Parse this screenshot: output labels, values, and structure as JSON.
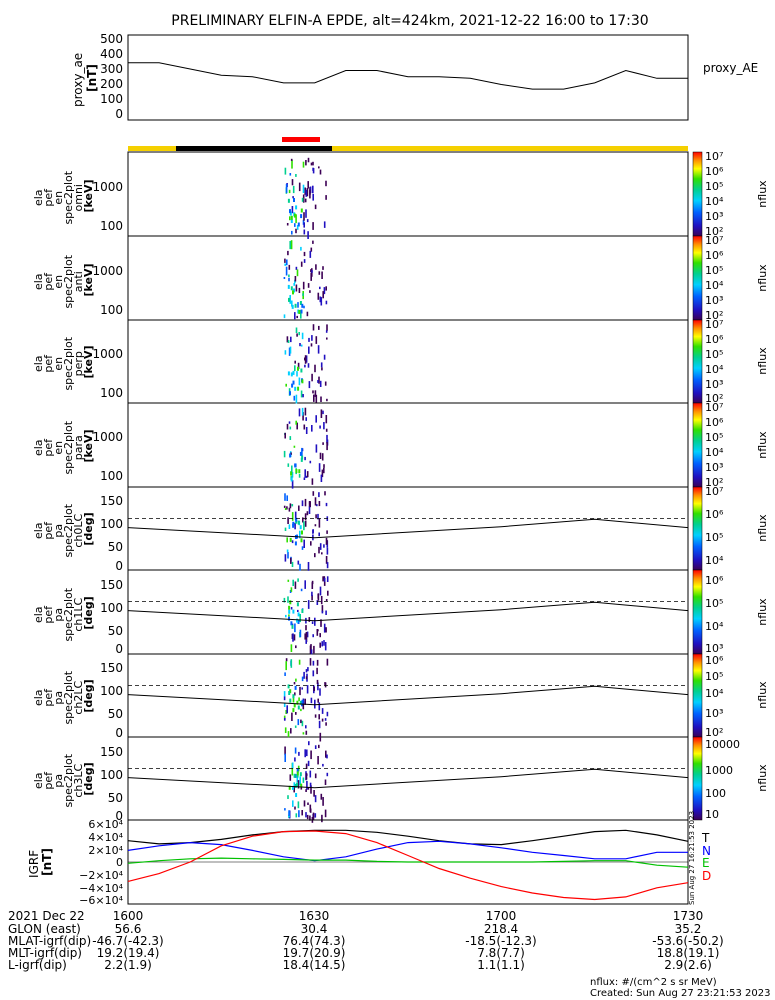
{
  "title": "PRELIMINARY ELFIN-A EPDE, alt=424km, 2021-12-22 16:00 to 17:30",
  "colors": {
    "sunlight_bar": "#f5d000",
    "shadow_bar": "#000000",
    "science_zone_bar": "#ff0000",
    "T": "#000000",
    "N": "#0000ff",
    "E": "#00c000",
    "D": "#ff0000"
  },
  "panels": {
    "proxy_ae": {
      "ylabel_lines": [
        "proxy_ae",
        "[nT]"
      ],
      "yticks": [
        "500",
        "400",
        "300",
        "200",
        "100",
        "0"
      ],
      "legend": "proxy_AE"
    },
    "spec_energy": [
      {
        "ylabel_lines": [
          "ela",
          "pef",
          "en",
          "spec2plot",
          "omni",
          "[keV]"
        ],
        "yticks": [
          "1000",
          "100"
        ]
      },
      {
        "ylabel_lines": [
          "ela",
          "pef",
          "en",
          "spec2plot",
          "anti",
          "[keV]"
        ],
        "yticks": [
          "1000",
          "100"
        ]
      },
      {
        "ylabel_lines": [
          "ela",
          "pef",
          "en",
          "spec2plot",
          "perp",
          "[keV]"
        ],
        "yticks": [
          "1000",
          "100"
        ]
      },
      {
        "ylabel_lines": [
          "ela",
          "pef",
          "en",
          "spec2plot",
          "para",
          "[keV]"
        ],
        "yticks": [
          "1000",
          "100"
        ]
      }
    ],
    "spec_pa": [
      {
        "ylabel_lines": [
          "ela",
          "pef",
          "pa",
          "spec2plot",
          "ch0LC",
          "[deg]"
        ],
        "yticks": [
          "150",
          "100",
          "50",
          "0"
        ]
      },
      {
        "ylabel_lines": [
          "ela",
          "pef",
          "pa",
          "spec2plot",
          "ch1LC",
          "[deg]"
        ],
        "yticks": [
          "150",
          "100",
          "50",
          "0"
        ]
      },
      {
        "ylabel_lines": [
          "ela",
          "pef",
          "pa",
          "spec2plot",
          "ch2LC",
          "[deg]"
        ],
        "yticks": [
          "150",
          "100",
          "50",
          "0"
        ]
      },
      {
        "ylabel_lines": [
          "ela",
          "pef",
          "pa",
          "spec2plot",
          "ch3LC",
          "[deg]"
        ],
        "yticks": [
          "150",
          "100",
          "50",
          "0"
        ]
      }
    ],
    "colorbars": [
      {
        "labels": [
          "10⁷",
          "10⁶",
          "10⁵",
          "10⁴",
          "10³",
          "10²"
        ],
        "unit": "nflux"
      },
      {
        "labels": [
          "10⁷",
          "10⁶",
          "10⁵",
          "10⁴",
          "10³",
          "10²"
        ],
        "unit": "nflux"
      },
      {
        "labels": [
          "10⁷",
          "10⁶",
          "10⁵",
          "10⁴",
          "10³",
          "10²"
        ],
        "unit": "nflux"
      },
      {
        "labels": [
          "10⁷",
          "10⁶",
          "10⁵",
          "10⁴",
          "10³",
          "10²"
        ],
        "unit": "nflux"
      },
      {
        "labels": [
          "10⁷",
          "10⁶",
          "10⁵",
          "10⁴"
        ],
        "unit": "nflux"
      },
      {
        "labels": [
          "10⁶",
          "10⁵",
          "10⁴",
          "10³"
        ],
        "unit": "nflux"
      },
      {
        "labels": [
          "10⁶",
          "10⁵",
          "10⁴",
          "10³",
          "10²"
        ],
        "unit": "nflux"
      },
      {
        "labels": [
          "10000",
          "1000",
          "100",
          "10"
        ],
        "unit": "nflux"
      }
    ],
    "igrf": {
      "ylabel_lines": [
        "IGRF",
        "[nT]"
      ],
      "yticks": [
        "6×10⁴",
        "4×10⁴",
        "2×10⁴",
        "0",
        "−2×10⁴",
        "−4×10⁴",
        "−6×10⁴"
      ],
      "legend": [
        "T",
        "N",
        "E",
        "D"
      ]
    }
  },
  "footer": {
    "rows": [
      [
        "2021 Dec 22",
        "1600",
        "1630",
        "1700",
        "1730"
      ],
      [
        "GLON (east)",
        "56.6",
        "30.4",
        "218.4",
        "35.2"
      ],
      [
        "MLAT-igrf(dip)",
        "-46.7(-42.3)",
        "76.4(74.3)",
        "-18.5(-12.3)",
        "-53.6(-50.2)"
      ],
      [
        "MLT-igrf(dip)",
        "19.2(19.4)",
        "19.7(20.9)",
        "7.8(7.7)",
        "18.8(19.1)"
      ],
      [
        "L-igrf(dip)",
        "2.2(1.9)",
        "18.4(14.5)",
        "1.1(1.1)",
        "2.9(2.6)"
      ]
    ],
    "unit_note": "nflux: #/(cm^2 s sr MeV)",
    "created": "Created: Sun Aug 27 23:21:53 2023",
    "side_stamp": "Sun Aug 27 16:21:53 2023"
  },
  "chart_data": [
    {
      "type": "line",
      "name_key": "proxy_ae",
      "x": [
        1600,
        1605,
        1610,
        1615,
        1620,
        1625,
        1630,
        1635,
        1640,
        1645,
        1650,
        1655,
        1700,
        1705,
        1710,
        1715,
        1720,
        1725,
        1730
      ],
      "series": [
        {
          "name": "proxy_AE",
          "values": [
            370,
            370,
            330,
            290,
            280,
            240,
            240,
            320,
            320,
            280,
            280,
            270,
            230,
            200,
            200,
            240,
            320,
            270,
            270
          ]
        }
      ],
      "ylim": [
        0,
        550
      ]
    },
    {
      "type": "heatmap",
      "name_key": "energy_spectra",
      "xlim": [
        1600,
        1730
      ],
      "ylim_keV": [
        55,
        7000
      ],
      "log_scale": true,
      "active_interval": [
        1625,
        1632
      ],
      "panels": [
        "omni",
        "anti",
        "perp",
        "para"
      ]
    },
    {
      "type": "heatmap",
      "name_key": "pitch_angle_spectra",
      "xlim": [
        1600,
        1730
      ],
      "ylim_deg": [
        0,
        180
      ],
      "active_interval": [
        1625,
        1632
      ],
      "loss_cone_dashed_deg": 112,
      "loss_cone_solid_deg": {
        "x": [
          1600,
          1630,
          1700,
          1715,
          1730
        ],
        "y": [
          92,
          70,
          94,
          110,
          92
        ]
      },
      "panels": [
        "ch0LC",
        "ch1LC",
        "ch2LC",
        "ch3LC"
      ]
    },
    {
      "type": "line",
      "name_key": "igrf",
      "x": [
        1600,
        1605,
        1610,
        1615,
        1620,
        1625,
        1630,
        1635,
        1640,
        1645,
        1650,
        1655,
        1700,
        1705,
        1710,
        1715,
        1720,
        1725,
        1730
      ],
      "series": [
        {
          "name": "T",
          "values": [
            33000,
            28000,
            30000,
            35000,
            42000,
            47000,
            49000,
            49000,
            46000,
            40000,
            33000,
            28000,
            27000,
            33000,
            40000,
            47000,
            49000,
            42000,
            32000
          ]
        },
        {
          "name": "N",
          "values": [
            18000,
            25000,
            30000,
            27000,
            18000,
            8000,
            2000,
            8000,
            20000,
            30000,
            32000,
            28000,
            22000,
            15000,
            10000,
            5000,
            5000,
            15000,
            15000
          ]
        },
        {
          "name": "E",
          "values": [
            -2000,
            2000,
            5000,
            6000,
            5000,
            4000,
            3000,
            3000,
            1000,
            0,
            0,
            0,
            0,
            0,
            1000,
            2000,
            2000,
            -5000,
            -8000
          ]
        },
        {
          "name": "D",
          "values": [
            -30000,
            -18000,
            0,
            25000,
            40000,
            47000,
            48000,
            44000,
            30000,
            10000,
            -10000,
            -25000,
            -38000,
            -48000,
            -55000,
            -58000,
            -54000,
            -40000,
            -32000
          ]
        }
      ],
      "ylim": [
        -65000,
        65000
      ]
    }
  ]
}
